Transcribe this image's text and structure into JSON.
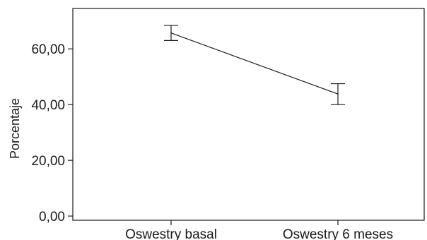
{
  "chart_data": {
    "type": "line",
    "title": "",
    "xlabel": "",
    "ylabel": "Porcentaje",
    "categories": [
      "Oswestry basal",
      "Oswestry 6 meses"
    ],
    "series": [
      {
        "values": [
          65.7,
          43.8
        ],
        "error_low": [
          63.0,
          40.0
        ],
        "error_high": [
          68.4,
          47.5
        ],
        "color": "#1a1a1a"
      }
    ],
    "yticks": [
      "0,00",
      "20,00",
      "40,00",
      "60,00"
    ],
    "ytick_values": [
      0,
      20,
      40,
      60
    ],
    "ylim": [
      -1.5,
      74.5
    ],
    "grid": false,
    "legend": "none"
  }
}
